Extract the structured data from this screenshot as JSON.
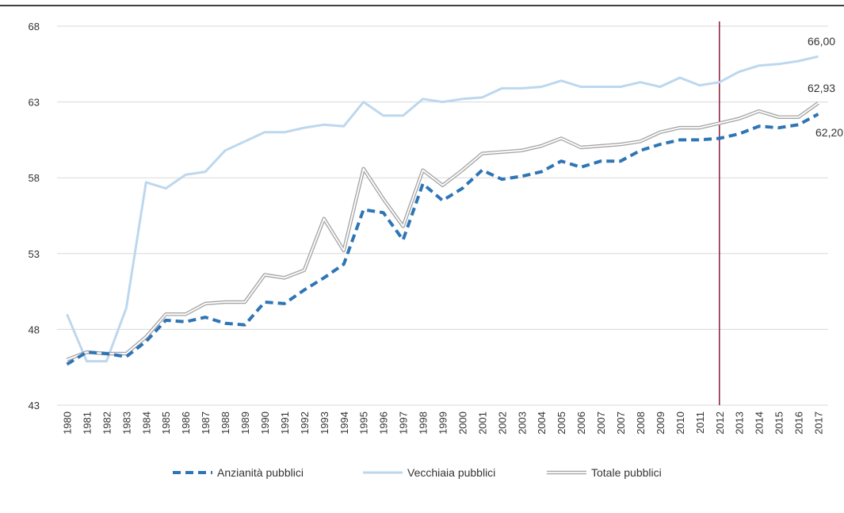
{
  "chart_data": {
    "type": "line",
    "categories": [
      "1980",
      "1981",
      "1982",
      "1983",
      "1984",
      "1985",
      "1986",
      "1987",
      "1988",
      "1989",
      "1990",
      "1991",
      "1992",
      "1993",
      "1994",
      "1995",
      "1996",
      "1997",
      "1998",
      "1999",
      "2000",
      "2001",
      "2002",
      "2003",
      "2004",
      "2005",
      "2006",
      "2007",
      "2007",
      "2008",
      "2009",
      "2010",
      "2011",
      "2012",
      "2013",
      "2014",
      "2015",
      "2016",
      "2017"
    ],
    "series": [
      {
        "name": "Anzianità pubblici",
        "color": "#2e75b6",
        "style": "dashed",
        "values": [
          45.7,
          46.5,
          46.4,
          46.2,
          47.2,
          48.6,
          48.5,
          48.8,
          48.4,
          48.3,
          49.8,
          49.7,
          50.6,
          51.4,
          52.3,
          55.9,
          55.7,
          53.9,
          57.6,
          56.5,
          57.3,
          58.5,
          57.9,
          58.1,
          58.4,
          59.1,
          58.7,
          59.1,
          59.1,
          59.8,
          60.2,
          60.5,
          60.5,
          60.6,
          60.9,
          61.4,
          61.3,
          61.5,
          62.2
        ],
        "value_labels": [
          null,
          null,
          null,
          null,
          null,
          null,
          null,
          null,
          null,
          null,
          null,
          null,
          null,
          null,
          null,
          null,
          null,
          null,
          null,
          null,
          null,
          null,
          null,
          null,
          null,
          null,
          null,
          null,
          null,
          null,
          null,
          null,
          null,
          null,
          null,
          null,
          null,
          null,
          "62,20"
        ]
      },
      {
        "name": "Vecchiaia pubblici",
        "color": "#bdd7ee",
        "style": "solid",
        "values": [
          49.0,
          45.9,
          45.9,
          49.4,
          57.7,
          57.3,
          58.2,
          58.4,
          59.8,
          60.4,
          61.0,
          61.0,
          61.3,
          61.5,
          61.4,
          63.0,
          62.1,
          62.1,
          63.2,
          63.0,
          63.2,
          63.3,
          63.9,
          63.9,
          64.0,
          64.4,
          64.0,
          64.0,
          64.0,
          64.3,
          64.0,
          64.6,
          64.1,
          64.3,
          65.0,
          65.4,
          65.5,
          65.7,
          66.0
        ],
        "value_labels": [
          null,
          null,
          null,
          null,
          null,
          null,
          null,
          null,
          null,
          null,
          null,
          null,
          null,
          null,
          null,
          null,
          null,
          null,
          null,
          null,
          null,
          null,
          null,
          null,
          null,
          null,
          null,
          null,
          null,
          null,
          null,
          null,
          null,
          null,
          null,
          null,
          null,
          null,
          "66,00"
        ]
      },
      {
        "name": "Totale pubblici",
        "color": "#a6a6a6",
        "style": "double",
        "values": [
          46.0,
          46.5,
          46.4,
          46.4,
          47.5,
          49.0,
          49.0,
          49.7,
          49.8,
          49.8,
          51.6,
          51.4,
          51.9,
          55.3,
          53.2,
          58.6,
          56.6,
          54.8,
          58.5,
          57.5,
          58.5,
          59.6,
          59.7,
          59.8,
          60.1,
          60.6,
          60.0,
          60.1,
          60.2,
          60.4,
          61.0,
          61.3,
          61.3,
          61.6,
          61.9,
          62.4,
          62.0,
          62.0,
          62.93
        ],
        "value_labels": [
          null,
          null,
          null,
          null,
          null,
          null,
          null,
          null,
          null,
          null,
          null,
          null,
          null,
          null,
          null,
          null,
          null,
          null,
          null,
          null,
          null,
          null,
          null,
          null,
          null,
          null,
          null,
          null,
          null,
          null,
          null,
          null,
          null,
          null,
          null,
          null,
          null,
          null,
          "62,93"
        ]
      }
    ],
    "ylim": [
      43,
      68
    ],
    "yticks": [
      43,
      48,
      53,
      58,
      63,
      68
    ],
    "grid": true,
    "vline": "2012",
    "vline_color": "#8b1a3a",
    "legend": "bottom"
  }
}
